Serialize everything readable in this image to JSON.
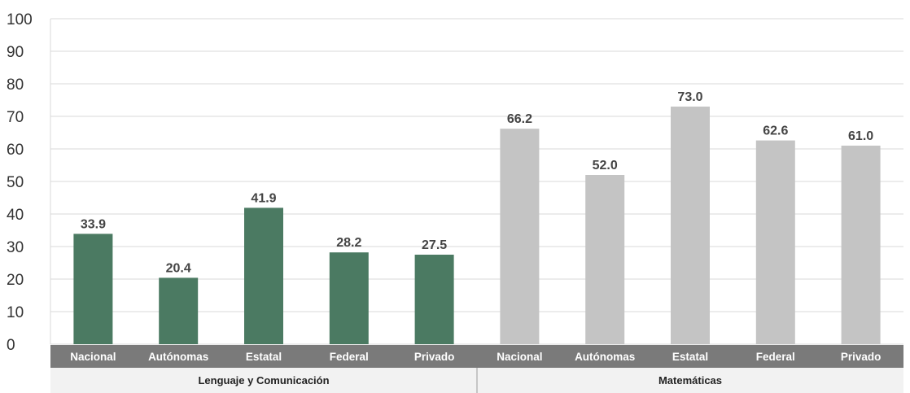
{
  "chart_data": {
    "type": "bar",
    "title": "",
    "xlabel": "",
    "ylabel": "",
    "ylim": [
      0,
      100
    ],
    "yticks": [
      0,
      10,
      20,
      30,
      40,
      50,
      60,
      70,
      80,
      90,
      100
    ],
    "grid": true,
    "categories": [
      "Nacional",
      "Autónomas",
      "Estatal",
      "Federal",
      "Privado",
      "Nacional",
      "Autónomas",
      "Estatal",
      "Federal",
      "Privado"
    ],
    "values": [
      33.9,
      20.4,
      41.9,
      28.2,
      27.5,
      66.2,
      52.0,
      73.0,
      62.6,
      61.0
    ],
    "value_labels": [
      "33.9",
      "20.4",
      "41.9",
      "28.2",
      "27.5",
      "66.2",
      "52.0",
      "73.0",
      "62.6",
      "61.0"
    ],
    "groups": [
      {
        "label": "Lenguaje y Comunicación",
        "color": "#4b7a62",
        "count": 5
      },
      {
        "label": "Matemáticas",
        "color": "#c4c4c4",
        "count": 5
      }
    ],
    "colors": {
      "category_band": "#7a7a7a",
      "group_band": "#f2f2f2",
      "grid": "#d9d9d9"
    }
  }
}
